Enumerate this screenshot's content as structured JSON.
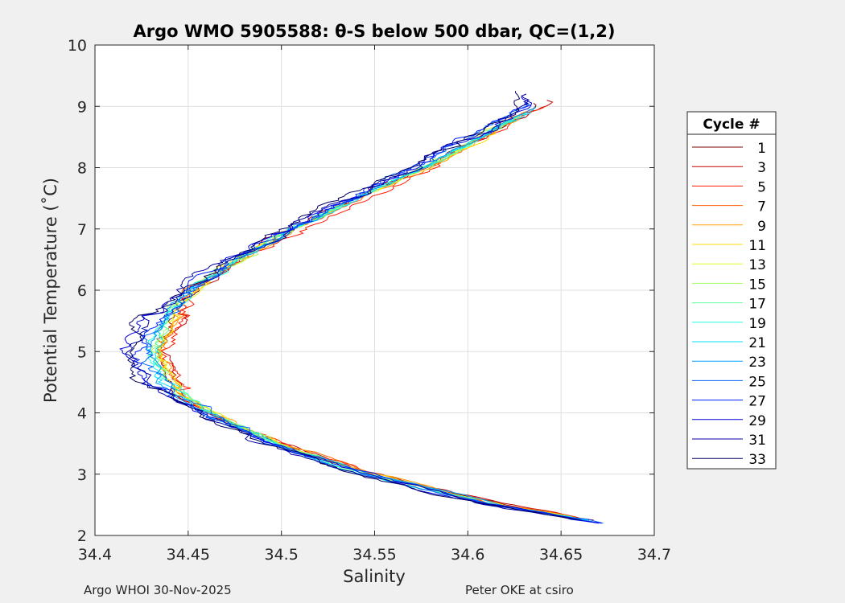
{
  "chart_data": {
    "type": "line",
    "title": "Argo WMO 5905588: θ-S below 500 dbar,  QC=(1,2)",
    "xlabel": "Salinity",
    "ylabel": "Potential Temperature (˚C)",
    "xlim": [
      34.4,
      34.7
    ],
    "ylim": [
      2,
      10
    ],
    "xticks": [
      34.4,
      34.45,
      34.5,
      34.55,
      34.6,
      34.65,
      34.7
    ],
    "xtick_labels": [
      "34.4",
      "34.45",
      "34.5",
      "34.55",
      "34.6",
      "34.65",
      "34.7"
    ],
    "yticks": [
      2,
      3,
      4,
      5,
      6,
      7,
      8,
      9,
      10
    ],
    "ytick_labels": [
      "2",
      "3",
      "4",
      "5",
      "6",
      "7",
      "8",
      "9",
      "10"
    ],
    "grid": true,
    "legend": {
      "title": "Cycle #",
      "position": "right"
    },
    "reference_profile": {
      "t": [
        2.2,
        2.5,
        3.0,
        3.5,
        4.0,
        4.5,
        5.0,
        5.5,
        6.0,
        6.5,
        7.0,
        7.5,
        8.0,
        8.5,
        9.0
      ],
      "s": [
        34.672,
        34.615,
        34.545,
        34.495,
        34.46,
        34.435,
        34.428,
        34.435,
        34.45,
        34.475,
        34.505,
        34.54,
        34.575,
        34.605,
        34.635
      ]
    },
    "series": [
      {
        "name": "1",
        "color": "#800000",
        "ds": 0.002,
        "noise": 0.002,
        "tmin": 2.25,
        "tmax": 9.05
      },
      {
        "name": "3",
        "color": "#c40000",
        "ds": 0.003,
        "noise": 0.0025,
        "tmin": 2.25,
        "tmax": 9.1
      },
      {
        "name": "5",
        "color": "#ff1a00",
        "ds": 0.004,
        "noise": 0.0025,
        "tmin": 2.3,
        "tmax": 9.0
      },
      {
        "name": "7",
        "color": "#ff6000",
        "ds": 0.0035,
        "noise": 0.002,
        "tmin": 2.3,
        "tmax": 8.95
      },
      {
        "name": "9",
        "color": "#ff9f00",
        "ds": 0.003,
        "noise": 0.002,
        "tmin": 2.3,
        "tmax": 8.9
      },
      {
        "name": "11",
        "color": "#ffdf00",
        "ds": 0.0025,
        "noise": 0.002,
        "tmin": 2.3,
        "tmax": 8.85
      },
      {
        "name": "13",
        "color": "#dfff20",
        "ds": 0.002,
        "noise": 0.002,
        "tmin": 2.3,
        "tmax": 8.8
      },
      {
        "name": "15",
        "color": "#9fff60",
        "ds": 0.0015,
        "noise": 0.002,
        "tmin": 2.3,
        "tmax": 8.8
      },
      {
        "name": "17",
        "color": "#60ff9f",
        "ds": 0.001,
        "noise": 0.002,
        "tmin": 2.25,
        "tmax": 8.85
      },
      {
        "name": "19",
        "color": "#20ffdf",
        "ds": 0.0008,
        "noise": 0.002,
        "tmin": 2.25,
        "tmax": 8.9
      },
      {
        "name": "21",
        "color": "#00dfff",
        "ds": 0.0005,
        "noise": 0.002,
        "tmin": 2.25,
        "tmax": 8.95
      },
      {
        "name": "23",
        "color": "#009fff",
        "ds": 0.0,
        "noise": 0.002,
        "tmin": 2.2,
        "tmax": 9.0
      },
      {
        "name": "25",
        "color": "#0060ff",
        "ds": -0.001,
        "noise": 0.003,
        "tmin": 2.2,
        "tmax": 9.05
      },
      {
        "name": "27",
        "color": "#0020ff",
        "ds": -0.002,
        "noise": 0.003,
        "tmin": 2.2,
        "tmax": 9.1
      },
      {
        "name": "29",
        "color": "#0000df",
        "ds": -0.003,
        "noise": 0.003,
        "tmin": 2.2,
        "tmax": 9.15
      },
      {
        "name": "31",
        "color": "#00009f",
        "ds": -0.004,
        "noise": 0.003,
        "tmin": 2.25,
        "tmax": 9.2
      },
      {
        "name": "33",
        "color": "#000060",
        "ds": -0.005,
        "noise": 0.003,
        "tmin": 2.25,
        "tmax": 9.25
      }
    ]
  },
  "footer": {
    "left": "Argo WHOI 30-Nov-2025",
    "right": "Peter OKE at csiro"
  },
  "colors": {
    "axis": "#262626",
    "grid": "#dfdfdf",
    "plot_bg": "#ffffff",
    "figure_bg": "#f0f0f0"
  }
}
